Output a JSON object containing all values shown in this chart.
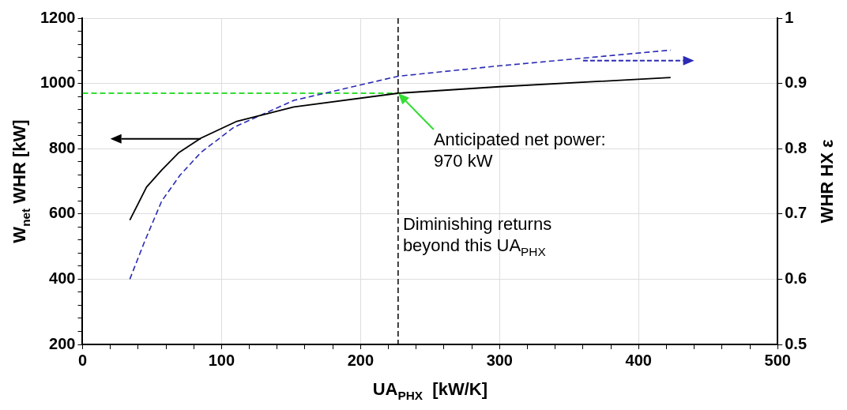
{
  "chart_data": {
    "type": "line",
    "xlabel": "UA$_{PHX}$  [kW/K]",
    "ylabel": "W$_{net}$ WHR [kW]",
    "y2label": "WHR HX ε",
    "xlim": [
      0,
      500
    ],
    "xticks": [
      0,
      {
        "value": 20,
        "label": null
      },
      {
        "value": 40,
        "label": null
      },
      {
        "value": 60,
        "label": null
      },
      {
        "value": 80,
        "label": null
      },
      100,
      {
        "value": 120,
        "label": null
      },
      {
        "value": 140,
        "label": null
      },
      {
        "value": 160,
        "label": null
      },
      {
        "value": 180,
        "label": null
      },
      200,
      {
        "value": 220,
        "label": null
      },
      {
        "value": 240,
        "label": null
      },
      {
        "value": 260,
        "label": null
      },
      {
        "value": 280,
        "label": null
      },
      300,
      {
        "value": 320,
        "label": null
      },
      {
        "value": 340,
        "label": null
      },
      {
        "value": 360,
        "label": null
      },
      {
        "value": 380,
        "label": null
      },
      400,
      {
        "value": 420,
        "label": null
      },
      {
        "value": 440,
        "label": null
      },
      {
        "value": 460,
        "label": null
      },
      {
        "value": 480,
        "label": null
      },
      500
    ],
    "ylim": [
      200,
      1200
    ],
    "yticks": [
      200,
      {
        "value": 240,
        "label": null
      },
      {
        "value": 280,
        "label": null
      },
      {
        "value": 320,
        "label": null
      },
      {
        "value": 360,
        "label": null
      },
      400,
      {
        "value": 440,
        "label": null
      },
      {
        "value": 480,
        "label": null
      },
      {
        "value": 520,
        "label": null
      },
      {
        "value": 560,
        "label": null
      },
      600,
      {
        "value": 640,
        "label": null
      },
      {
        "value": 680,
        "label": null
      },
      {
        "value": 720,
        "label": null
      },
      {
        "value": 760,
        "label": null
      },
      800,
      {
        "value": 840,
        "label": null
      },
      {
        "value": 880,
        "label": null
      },
      {
        "value": 920,
        "label": null
      },
      {
        "value": 960,
        "label": null
      },
      1000,
      {
        "value": 1040,
        "label": null
      },
      {
        "value": 1080,
        "label": null
      },
      {
        "value": 1120,
        "label": null
      },
      {
        "value": 1160,
        "label": null
      },
      1200
    ],
    "y2lim": [
      0.5,
      1
    ],
    "y2ticks": [
      0.5,
      0.6,
      0.7,
      0.8,
      0.9,
      1
    ],
    "grid": true,
    "marker": "none",
    "series": [
      {
        "color": "#000000",
        "line_style": "solid",
        "x": [
          34,
          46,
          57,
          69,
          85,
          111,
          152,
          227,
          300,
          423
        ],
        "values": [
          581,
          682,
          735,
          787,
          832,
          884,
          928,
          970,
          990,
          1018
        ]
      },
      {
        "color": "#2b2bb5",
        "line_style": "dashed",
        "axis": "y2",
        "x": [
          34,
          44.5,
          57,
          70,
          85,
          109,
          152,
          227,
          300,
          423
        ],
        "values": [
          0.6,
          0.657,
          0.72,
          0.759,
          0.794,
          0.833,
          0.874,
          0.911,
          0.927,
          0.951
        ]
      },
      {
        "color": "#33dd33",
        "line_style": "dashed",
        "x": [
          0,
          227
        ],
        "values": [
          970,
          970
        ]
      }
    ],
    "ref_lines": [
      {
        "axis": "x",
        "value": 227,
        "label": "Diminishing returns\nbeyond this UA$_{PHX}$",
        "color": "#000000",
        "line_style": "dashed"
      }
    ],
    "annotations": [
      {
        "text": "Anticipated net power:\n970 kW",
        "x": 227,
        "y": 970
      }
    ]
  }
}
